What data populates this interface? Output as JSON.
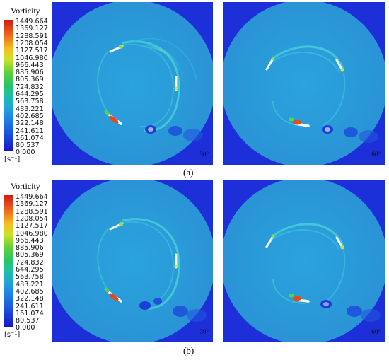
{
  "colorbar": {
    "title": "Vorticity",
    "ticks": [
      "1449.664",
      "1369.127",
      "1288.591",
      "1208.054",
      "1127.517",
      "1046.980",
      "966.443",
      "885.906",
      "805.369",
      "724.832",
      "644.295",
      "563.758",
      "483.221",
      "402.685",
      "322.148",
      "241.611",
      "161.074",
      "80.537",
      "0.000"
    ],
    "unit": "[s⁻¹]"
  },
  "rows": [
    {
      "caption": "(a)",
      "panels": [
        {
          "angle": "30°"
        },
        {
          "angle": "60°"
        }
      ]
    },
    {
      "caption": "(b)",
      "panels": [
        {
          "angle": "30°"
        },
        {
          "angle": "60°"
        }
      ]
    }
  ]
}
